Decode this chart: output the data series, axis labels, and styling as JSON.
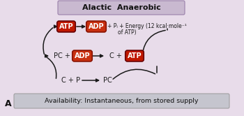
{
  "title": "Alactic  Anaerobic",
  "title_bg": "#c9b9d0",
  "bg_color": "#e8dcea",
  "main_bg": "#f2eef3",
  "availability_text": "Availability: Instantaneous, from stored supply",
  "avail_bg": "#c5c5ce",
  "label_A": "A",
  "atp_color_dark": "#c01800",
  "atp_color_light": "#e05040",
  "adp_color_dark": "#c83010",
  "adp_color_light": "#e07858",
  "text_color": "#1a1a1a",
  "arrow_color": "#1a1a1a",
  "line_color": "#1a1a1a"
}
